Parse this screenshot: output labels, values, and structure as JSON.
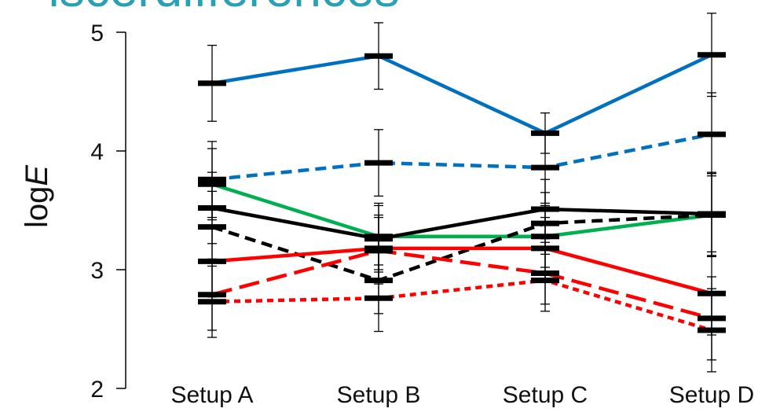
{
  "title": "iscerdifferences",
  "chart_data": {
    "type": "line",
    "title": "iscerdifferences",
    "xlabel": "",
    "ylabel": "log",
    "ylabel_italic": "E",
    "categories": [
      "Setup A",
      "Setup B",
      "Setup C",
      "Setup D"
    ],
    "ylim": [
      2,
      5
    ],
    "yticks": [
      2,
      3,
      4,
      5
    ],
    "grid": false,
    "legend": "none",
    "series": [
      {
        "color": "#0070c0",
        "dash": "solid",
        "values": [
          4.57,
          4.8,
          4.15,
          4.81
        ],
        "err": [
          0.32,
          0.28,
          0.17,
          0.35
        ]
      },
      {
        "color": "#0070c0",
        "dash": "dashed",
        "values": [
          3.76,
          3.9,
          3.86,
          4.14
        ],
        "err": [
          0.32,
          0.28,
          0.3,
          0.35
        ]
      },
      {
        "color": "#00b050",
        "dash": "solid",
        "values": [
          3.72,
          3.28,
          3.28,
          3.46
        ],
        "err": [
          0.3,
          0.28,
          0.26,
          0.35
        ]
      },
      {
        "color": "#000000",
        "dash": "solid",
        "values": [
          3.52,
          3.26,
          3.51,
          3.47
        ],
        "err": [
          0.3,
          0.28,
          0.25,
          0.35
        ]
      },
      {
        "color": "#000000",
        "dash": "dashed",
        "values": [
          3.36,
          2.91,
          3.39,
          3.46
        ],
        "err": [
          0.3,
          0.28,
          0.26,
          0.35
        ]
      },
      {
        "color": "#ff0000",
        "dash": "solid",
        "values": [
          3.07,
          3.18,
          3.18,
          2.8
        ],
        "err": [
          0.3,
          0.28,
          0.26,
          0.35
        ]
      },
      {
        "color": "#ff0000",
        "dash": "longdash",
        "values": [
          2.79,
          3.16,
          2.97,
          2.59
        ],
        "err": [
          0.3,
          0.28,
          0.26,
          0.35
        ]
      },
      {
        "color": "#ff0000",
        "dash": "dotted",
        "values": [
          2.73,
          2.76,
          2.91,
          2.49
        ],
        "err": [
          0.3,
          0.28,
          0.26,
          0.35
        ]
      }
    ]
  }
}
